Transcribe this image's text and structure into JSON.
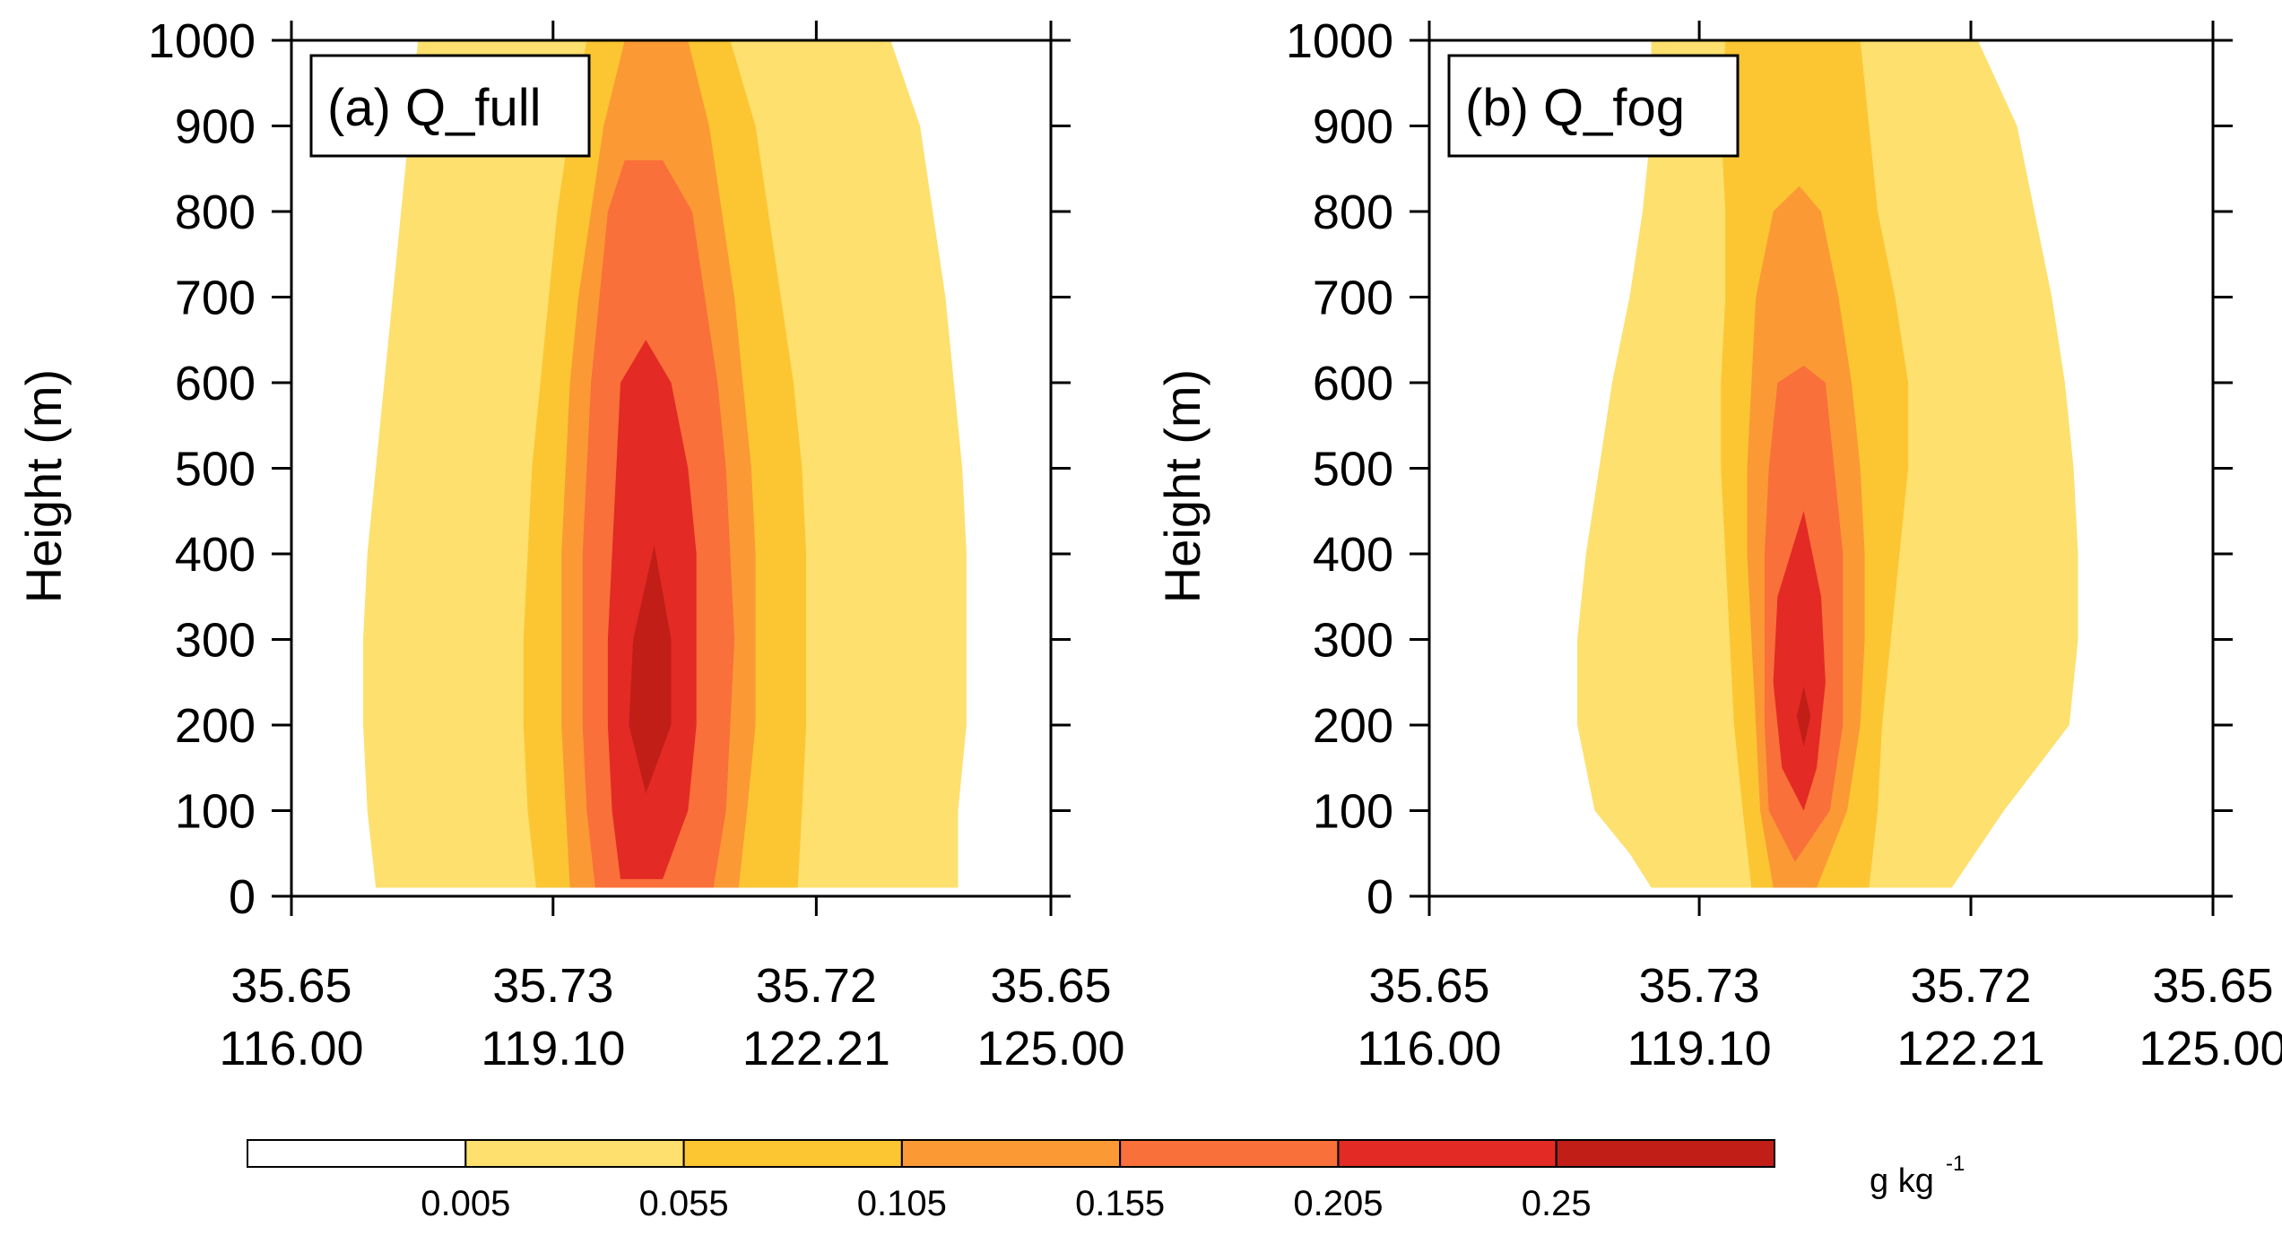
{
  "chart_data": {
    "type": "contour",
    "colorbar": {
      "levels": [
        "0.005",
        "0.055",
        "0.105",
        "0.155",
        "0.205",
        "0.25"
      ],
      "colors": [
        "#ffffff",
        "#fde06e",
        "#fcc633",
        "#fb9a35",
        "#f9703a",
        "#e42a24",
        "#c11e18"
      ],
      "unit_main": "g kg",
      "unit_sup": "-1"
    },
    "panels": [
      {
        "id": "a",
        "label": "(a) Q_full",
        "ylabel": "Height (m)",
        "yticks": [
          "1000",
          "900",
          "800",
          "700",
          "600",
          "500",
          "400",
          "300",
          "200",
          "100",
          "0"
        ],
        "xticks_lat": [
          "35.65",
          "35.73",
          "35.72",
          "35.65"
        ],
        "xticks_lon": [
          "116.00",
          "119.10",
          "122.21",
          "125.00"
        ],
        "xlim": [
          116.0,
          125.0
        ],
        "ylim": [
          0,
          1000
        ],
        "contours": [
          {
            "level": 1,
            "base": 10,
            "top": 1000,
            "points": [
              [
                10,
                117.0
              ],
              [
                100,
                116.9
              ],
              [
                200,
                116.85
              ],
              [
                300,
                116.85
              ],
              [
                400,
                116.9
              ],
              [
                500,
                117.0
              ],
              [
                600,
                117.1
              ],
              [
                700,
                117.2
              ],
              [
                800,
                117.3
              ],
              [
                900,
                117.4
              ],
              [
                1000,
                117.5
              ]
            ],
            "pointsR": [
              [
                10,
                123.9
              ],
              [
                100,
                123.9
              ],
              [
                200,
                124.0
              ],
              [
                300,
                124.0
              ],
              [
                400,
                124.0
              ],
              [
                500,
                123.95
              ],
              [
                600,
                123.85
              ],
              [
                700,
                123.75
              ],
              [
                800,
                123.6
              ],
              [
                900,
                123.45
              ],
              [
                1000,
                123.1
              ]
            ]
          },
          {
            "level": 2,
            "base": 10,
            "top": 1000,
            "points": [
              [
                10,
                118.9
              ],
              [
                100,
                118.8
              ],
              [
                200,
                118.75
              ],
              [
                300,
                118.75
              ],
              [
                400,
                118.8
              ],
              [
                500,
                118.85
              ],
              [
                600,
                118.95
              ],
              [
                700,
                119.05
              ],
              [
                800,
                119.15
              ],
              [
                900,
                119.3
              ],
              [
                1000,
                119.5
              ]
            ],
            "pointsR": [
              [
                10,
                122.0
              ],
              [
                100,
                122.05
              ],
              [
                200,
                122.1
              ],
              [
                300,
                122.1
              ],
              [
                400,
                122.1
              ],
              [
                500,
                122.05
              ],
              [
                600,
                121.95
              ],
              [
                700,
                121.8
              ],
              [
                800,
                121.65
              ],
              [
                900,
                121.5
              ],
              [
                1000,
                121.2
              ]
            ]
          },
          {
            "level": 3,
            "base": 10,
            "top": 1000,
            "points": [
              [
                10,
                119.3
              ],
              [
                100,
                119.25
              ],
              [
                200,
                119.2
              ],
              [
                300,
                119.2
              ],
              [
                400,
                119.2
              ],
              [
                500,
                119.25
              ],
              [
                600,
                119.3
              ],
              [
                700,
                119.4
              ],
              [
                800,
                119.55
              ],
              [
                900,
                119.7
              ],
              [
                1000,
                119.95
              ]
            ],
            "pointsR": [
              [
                10,
                121.3
              ],
              [
                100,
                121.4
              ],
              [
                200,
                121.5
              ],
              [
                300,
                121.5
              ],
              [
                400,
                121.5
              ],
              [
                500,
                121.45
              ],
              [
                600,
                121.35
              ],
              [
                700,
                121.25
              ],
              [
                800,
                121.1
              ],
              [
                900,
                120.95
              ],
              [
                1000,
                120.7
              ]
            ]
          },
          {
            "level": 4,
            "base": 10,
            "top": 860,
            "points": [
              [
                10,
                119.6
              ],
              [
                100,
                119.5
              ],
              [
                200,
                119.45
              ],
              [
                300,
                119.45
              ],
              [
                400,
                119.45
              ],
              [
                500,
                119.5
              ],
              [
                600,
                119.55
              ],
              [
                700,
                119.65
              ],
              [
                800,
                119.75
              ],
              [
                860,
                119.95
              ]
            ],
            "pointsR": [
              [
                10,
                121.0
              ],
              [
                100,
                121.15
              ],
              [
                200,
                121.2
              ],
              [
                300,
                121.25
              ],
              [
                400,
                121.2
              ],
              [
                500,
                121.15
              ],
              [
                600,
                121.05
              ],
              [
                700,
                120.9
              ],
              [
                800,
                120.75
              ],
              [
                860,
                120.4
              ]
            ]
          },
          {
            "level": 5,
            "base": 20,
            "top": 650,
            "points": [
              [
                20,
                119.9
              ],
              [
                100,
                119.8
              ],
              [
                200,
                119.75
              ],
              [
                300,
                119.75
              ],
              [
                400,
                119.8
              ],
              [
                500,
                119.85
              ],
              [
                600,
                119.9
              ],
              [
                650,
                120.2
              ]
            ],
            "pointsR": [
              [
                20,
                120.4
              ],
              [
                100,
                120.7
              ],
              [
                200,
                120.8
              ],
              [
                300,
                120.8
              ],
              [
                400,
                120.8
              ],
              [
                500,
                120.7
              ],
              [
                600,
                120.5
              ],
              [
                650,
                120.2
              ]
            ]
          },
          {
            "level": 6,
            "base": 120,
            "top": 410,
            "points": [
              [
                120,
                120.2
              ],
              [
                200,
                120.0
              ],
              [
                300,
                120.05
              ],
              [
                410,
                120.3
              ]
            ],
            "pointsR": [
              [
                120,
                120.2
              ],
              [
                200,
                120.5
              ],
              [
                300,
                120.5
              ],
              [
                410,
                120.3
              ]
            ]
          }
        ]
      },
      {
        "id": "b",
        "label": "(b) Q_fog",
        "ylabel": "Height (m)",
        "yticks": [
          "1000",
          "900",
          "800",
          "700",
          "600",
          "500",
          "400",
          "300",
          "200",
          "100",
          "0"
        ],
        "xticks_lat": [
          "35.65",
          "35.73",
          "35.72",
          "35.65"
        ],
        "xticks_lon": [
          "116.00",
          "119.10",
          "122.21",
          "125.00"
        ],
        "xlim": [
          116.0,
          125.0
        ],
        "ylim": [
          0,
          1000
        ],
        "contours": [
          {
            "level": 1,
            "base": 10,
            "top": 1000,
            "points": [
              [
                10,
                118.55
              ],
              [
                50,
                118.3
              ],
              [
                100,
                117.9
              ],
              [
                200,
                117.7
              ],
              [
                300,
                117.7
              ],
              [
                400,
                117.8
              ],
              [
                500,
                117.95
              ],
              [
                600,
                118.1
              ],
              [
                700,
                118.3
              ],
              [
                800,
                118.45
              ],
              [
                900,
                118.55
              ],
              [
                1000,
                118.55
              ]
            ],
            "pointsR": [
              [
                10,
                122.0
              ],
              [
                100,
                122.6
              ],
              [
                200,
                123.35
              ],
              [
                300,
                123.45
              ],
              [
                400,
                123.45
              ],
              [
                500,
                123.4
              ],
              [
                600,
                123.3
              ],
              [
                700,
                123.15
              ],
              [
                800,
                122.95
              ],
              [
                900,
                122.75
              ],
              [
                1000,
                122.3
              ]
            ]
          },
          {
            "level": 2,
            "base": 10,
            "top": 1000,
            "points": [
              [
                10,
                119.7
              ],
              [
                100,
                119.6
              ],
              [
                200,
                119.5
              ],
              [
                300,
                119.45
              ],
              [
                400,
                119.4
              ],
              [
                500,
                119.35
              ],
              [
                600,
                119.35
              ],
              [
                700,
                119.4
              ],
              [
                800,
                119.4
              ],
              [
                900,
                119.35
              ],
              [
                1000,
                119.4
              ]
            ],
            "pointsR": [
              [
                10,
                121.05
              ],
              [
                100,
                121.15
              ],
              [
                200,
                121.2
              ],
              [
                300,
                121.3
              ],
              [
                400,
                121.4
              ],
              [
                500,
                121.5
              ],
              [
                600,
                121.5
              ],
              [
                700,
                121.35
              ],
              [
                800,
                121.15
              ],
              [
                900,
                121.05
              ],
              [
                1000,
                120.95
              ]
            ]
          },
          {
            "level": 3,
            "base": 10,
            "top": 830,
            "points": [
              [
                10,
                119.95
              ],
              [
                100,
                119.8
              ],
              [
                200,
                119.75
              ],
              [
                300,
                119.7
              ],
              [
                400,
                119.65
              ],
              [
                500,
                119.65
              ],
              [
                600,
                119.7
              ],
              [
                700,
                119.75
              ],
              [
                800,
                119.95
              ],
              [
                830,
                120.25
              ]
            ],
            "pointsR": [
              [
                10,
                120.45
              ],
              [
                100,
                120.8
              ],
              [
                200,
                120.95
              ],
              [
                300,
                121.0
              ],
              [
                400,
                121.0
              ],
              [
                500,
                120.95
              ],
              [
                600,
                120.85
              ],
              [
                700,
                120.7
              ],
              [
                800,
                120.5
              ],
              [
                830,
                120.25
              ]
            ]
          },
          {
            "level": 4,
            "base": 40,
            "top": 620,
            "points": [
              [
                40,
                120.2
              ],
              [
                100,
                119.9
              ],
              [
                200,
                119.85
              ],
              [
                300,
                119.85
              ],
              [
                400,
                119.85
              ],
              [
                500,
                119.9
              ],
              [
                600,
                120.0
              ],
              [
                620,
                120.3
              ]
            ],
            "pointsR": [
              [
                40,
                120.2
              ],
              [
                100,
                120.6
              ],
              [
                200,
                120.75
              ],
              [
                300,
                120.75
              ],
              [
                400,
                120.75
              ],
              [
                500,
                120.65
              ],
              [
                600,
                120.55
              ],
              [
                620,
                120.3
              ]
            ]
          },
          {
            "level": 5,
            "base": 100,
            "top": 450,
            "points": [
              [
                100,
                120.3
              ],
              [
                150,
                120.05
              ],
              [
                250,
                119.95
              ],
              [
                350,
                120.0
              ],
              [
                450,
                120.3
              ]
            ],
            "pointsR": [
              [
                100,
                120.3
              ],
              [
                150,
                120.45
              ],
              [
                250,
                120.55
              ],
              [
                350,
                120.5
              ],
              [
                450,
                120.3
              ]
            ]
          },
          {
            "level": 6,
            "base": 175,
            "top": 245,
            "points": [
              [
                175,
                120.3
              ],
              [
                210,
                120.22
              ],
              [
                245,
                120.3
              ]
            ],
            "pointsR": [
              [
                175,
                120.3
              ],
              [
                210,
                120.38
              ],
              [
                245,
                120.3
              ]
            ]
          }
        ]
      }
    ]
  }
}
